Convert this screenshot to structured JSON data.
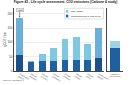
{
  "chart_data": [
    {
      "type": "bar",
      "title": "Figure 43 - Life cycle assessment, CO2 emissions (Carbone 4 study)",
      "ylabel": "gCO2 / km",
      "categories": [
        "Combustion\n(petrol)",
        "Electric\n(France)",
        "Electric\n(EU mix)",
        "Electric\n(Germany)",
        "Electric\n(Poland)",
        "Electric\n(China)",
        "Electric\n(USA)",
        "Combustion\n(diesel)"
      ],
      "series": [
        {
          "name": "Manufacturing & end of life",
          "color": "#2060a0",
          "colors": [
            "#1a4f8a",
            "#2060a0",
            "#2060a0",
            "#2060a0",
            "#2060a0",
            "#2060a0",
            "#2060a0",
            "#1a4f8a"
          ],
          "values": [
            55,
            30,
            35,
            35,
            38,
            38,
            38,
            45
          ]
        },
        {
          "name": "Use phase",
          "color": "#7ec8e3",
          "colors": [
            "#6ab0d8",
            "#7ec8e3",
            "#7ec8e3",
            "#7ec8e3",
            "#7ec8e3",
            "#7ec8e3",
            "#7ec8e3",
            "#6ab0d8"
          ],
          "values": [
            130,
            5,
            25,
            45,
            75,
            80,
            55,
            105
          ]
        }
      ],
      "stacked": true,
      "ylim": [
        0,
        220
      ],
      "yticks": [
        0,
        50,
        100,
        150,
        200
      ],
      "grid": true,
      "legend": "upper right",
      "annotations": [
        {
          "text": "~185",
          "category": "Combustion\n(petrol)"
        },
        {
          "text": "Source: Carbone 4"
        }
      ]
    },
    {
      "type": "bar",
      "categories": [
        "Hydrogen\n(electrolysis)"
      ],
      "series": [
        {
          "name": "Manufacturing & end of life",
          "colors": [
            "#2060a0"
          ],
          "values": [
            80
          ]
        },
        {
          "name": "Use phase",
          "colors": [
            "#9dd4e8"
          ],
          "values": [
            25
          ]
        }
      ],
      "stacked": true,
      "ylim": [
        0,
        220
      ],
      "grid": false,
      "tick_labels": "x"
    }
  ]
}
